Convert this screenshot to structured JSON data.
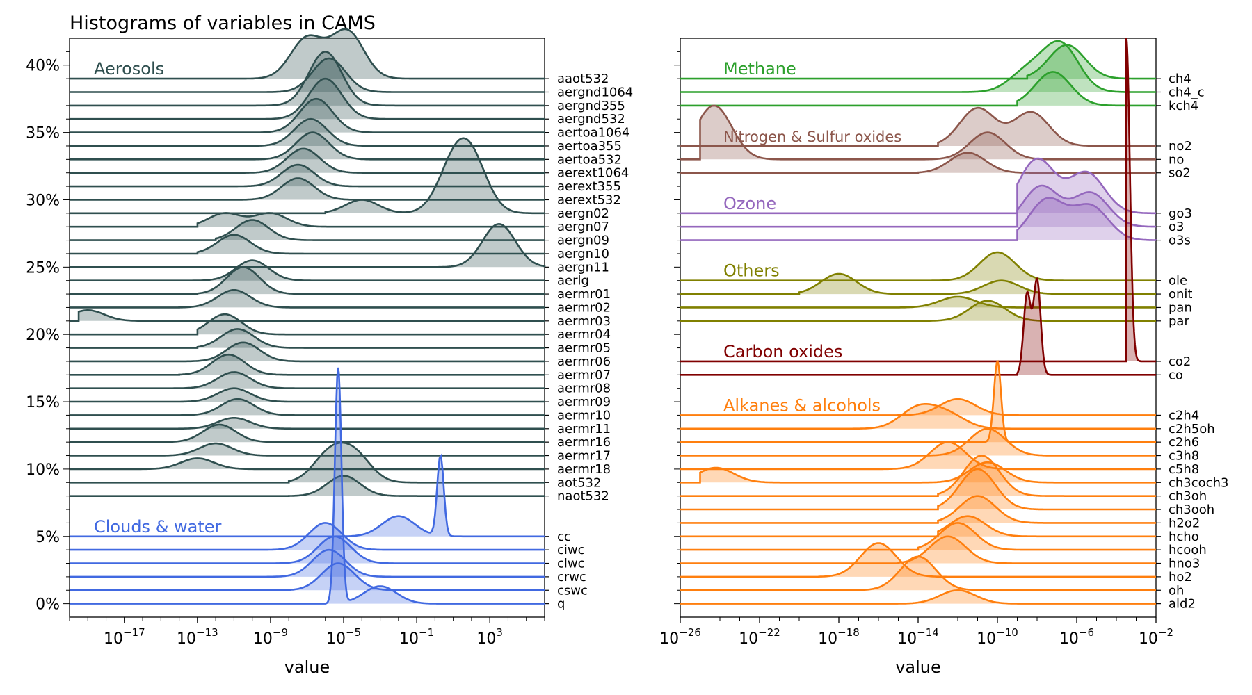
{
  "chart_data": [
    {
      "type": "area",
      "panel": "left",
      "title": "Histograms of variables in CAMS",
      "xlabel": "value",
      "ylabel": "",
      "x_scale": "log",
      "xlim": [
        1e-20,
        1000000.0
      ],
      "ylim": [
        -1,
        42
      ],
      "x_tick_labels": [
        "10^-17",
        "10^-13",
        "10^-9",
        "10^-5",
        "10^-1",
        "10^3"
      ],
      "y_tick_labels": [
        "0%",
        "5%",
        "10%",
        "15%",
        "20%",
        "25%",
        "30%",
        "35%",
        "40%"
      ],
      "grid": false,
      "groups": [
        {
          "name": "Aerosols",
          "color": "#2F4F4F",
          "series": [
            {
              "name": "aaot532",
              "baseline": 39,
              "peaks": [
                [
                  -7,
                  3
                ],
                [
                  -4.8,
                  3.5
                ]
              ],
              "start": -11
            },
            {
              "name": "aergnd1064",
              "baseline": 38,
              "peaks": [
                [
                  -5.8,
                  2.5
                ]
              ],
              "start": -12
            },
            {
              "name": "aergnd355",
              "baseline": 37,
              "peaks": [
                [
                  -6,
                  4
                ]
              ],
              "start": -11
            },
            {
              "name": "aergnd532",
              "baseline": 36,
              "peaks": [
                [
                  -6,
                  3
                ]
              ],
              "start": -11
            },
            {
              "name": "aertoa1064",
              "baseline": 35,
              "peaks": [
                [
                  -6.5,
                  2.5
                ]
              ],
              "start": -11
            },
            {
              "name": "aertoa355",
              "baseline": 34,
              "peaks": [
                [
                  -6.8,
                  2
                ]
              ],
              "start": -12
            },
            {
              "name": "aertoa532",
              "baseline": 33,
              "peaks": [
                [
                  -6.7,
                  2
                ]
              ],
              "start": -12
            },
            {
              "name": "aerext1064",
              "baseline": 32,
              "peaks": [
                [
                  -7.2,
                  1.8
                ]
              ],
              "start": -12
            },
            {
              "name": "aerext355",
              "baseline": 31,
              "peaks": [
                [
                  -7.5,
                  1.6
                ]
              ],
              "start": -12
            },
            {
              "name": "aerext532",
              "baseline": 30,
              "peaks": [
                [
                  -7.5,
                  1.6
                ]
              ],
              "start": -12
            },
            {
              "name": "aergn02",
              "baseline": 29,
              "peaks": [
                [
                  -4,
                  1
                ],
                [
                  1,
                  3
                ],
                [
                  2,
                  3.5
                ]
              ],
              "start": -6
            },
            {
              "name": "aergn07",
              "baseline": 28,
              "peaks": [
                [
                  -11.5,
                  1
                ],
                [
                  -9,
                  1
                ]
              ],
              "start": -13
            },
            {
              "name": "aergn09",
              "baseline": 27,
              "peaks": [
                [
                  -10,
                  1.5
                ]
              ],
              "start": -12
            },
            {
              "name": "aergn10",
              "baseline": 26,
              "peaks": [
                [
                  -11,
                  1.4
                ]
              ],
              "start": -13
            },
            {
              "name": "aergn11",
              "baseline": 25,
              "peaks": [
                [
                  3.5,
                  3.2
                ]
              ],
              "start": -1
            },
            {
              "name": "aerlg",
              "baseline": 24,
              "peaks": [
                [
                  -10,
                  1.5
                ]
              ],
              "start": -15
            },
            {
              "name": "aermr01",
              "baseline": 23,
              "peaks": [
                [
                  -10.5,
                  2
                ]
              ],
              "start": -13
            },
            {
              "name": "aermr02",
              "baseline": 22,
              "peaks": [
                [
                  -11,
                  1.3
                ]
              ],
              "start": -14
            },
            {
              "name": "aermr03",
              "baseline": 21,
              "peaks": [
                [
                  -19,
                  0.8
                ]
              ],
              "start": -19.5
            },
            {
              "name": "aermr04",
              "baseline": 20,
              "peaks": [
                [
                  -11.5,
                  1.5
                ]
              ],
              "start": -13
            },
            {
              "name": "aermr05",
              "baseline": 19,
              "peaks": [
                [
                  -10.8,
                  1.4
                ]
              ],
              "start": -13
            },
            {
              "name": "aermr06",
              "baseline": 18,
              "peaks": [
                [
                  -10.5,
                  1.4
                ]
              ],
              "start": -16
            },
            {
              "name": "aermr07",
              "baseline": 17,
              "peaks": [
                [
                  -11.3,
                  1.5
                ]
              ],
              "start": -14
            },
            {
              "name": "aermr08",
              "baseline": 16,
              "peaks": [
                [
                  -11,
                  1.2
                ]
              ],
              "start": -15
            },
            {
              "name": "aermr09",
              "baseline": 15,
              "peaks": [
                [
                  -11,
                  1
                ]
              ],
              "start": -15
            },
            {
              "name": "aermr10",
              "baseline": 14,
              "peaks": [
                [
                  -10.8,
                  1.2
                ]
              ],
              "start": -15
            },
            {
              "name": "aermr11",
              "baseline": 13,
              "peaks": [
                [
                  -11,
                  0.8
                ]
              ],
              "start": -14
            },
            {
              "name": "aermr16",
              "baseline": 12,
              "peaks": [
                [
                  -11.8,
                  1.3
                ]
              ],
              "start": -16
            },
            {
              "name": "aermr17",
              "baseline": 11,
              "peaks": [
                [
                  -12,
                  0.9
                ]
              ],
              "start": -17
            },
            {
              "name": "aermr18",
              "baseline": 10,
              "peaks": [
                [
                  -13,
                  0.8
                ]
              ],
              "start": -20
            },
            {
              "name": "aot532",
              "baseline": 9,
              "peaks": [
                [
                  -5.8,
                  2
                ],
                [
                  -4.4,
                  2
                ]
              ],
              "start": -8
            },
            {
              "name": "naot532",
              "baseline": 8,
              "peaks": [
                [
                  -5,
                  1.5
                ]
              ],
              "start": -8
            }
          ]
        },
        {
          "name": "Clouds & water",
          "color": "#4169E1",
          "series": [
            {
              "name": "cc",
              "baseline": 5,
              "peaks": [
                [
                  -2,
                  1.5
                ],
                [
                  0.3,
                  6
                ]
              ],
              "start": -16
            },
            {
              "name": "ciwc",
              "baseline": 4,
              "peaks": [
                [
                  -6,
                  2
                ]
              ],
              "start": -12
            },
            {
              "name": "clwc",
              "baseline": 3,
              "peaks": [
                [
                  -5.5,
                  2
                ]
              ],
              "start": -12
            },
            {
              "name": "crwc",
              "baseline": 2,
              "peaks": [
                [
                  -5.8,
                  2
                ]
              ],
              "start": -12
            },
            {
              "name": "cswc",
              "baseline": 1,
              "peaks": [
                [
                  -5.3,
                  2
                ]
              ],
              "start": -12
            },
            {
              "name": "q",
              "baseline": 0,
              "peaks": [
                [
                  -5.3,
                  17.5
                ],
                [
                  -3,
                  1.3
                ]
              ],
              "start": -6
            }
          ]
        }
      ]
    },
    {
      "type": "area",
      "panel": "right",
      "title": "",
      "xlabel": "value",
      "ylabel": "",
      "x_scale": "log",
      "xlim": [
        1e-26,
        0.01
      ],
      "ylim": [
        -1,
        42
      ],
      "x_tick_labels": [
        "10^-26",
        "10^-22",
        "10^-18",
        "10^-14",
        "10^-10",
        "10^-6",
        "10^-2"
      ],
      "grid": false,
      "groups": [
        {
          "name": "Methane",
          "color": "#2CA02C",
          "series": [
            {
              "name": "ch4",
              "baseline": 39,
              "peaks": [
                [
                  -6.5,
                  2.5
                ]
              ],
              "start": -8.5
            },
            {
              "name": "ch4_c",
              "baseline": 38,
              "peaks": [
                [
                  -8.5,
                  1.5
                ],
                [
                  -6.8,
                  3.5
                ]
              ],
              "start": -12
            },
            {
              "name": "kch4",
              "baseline": 37,
              "peaks": [
                [
                  -7.2,
                  2.5
                ]
              ],
              "start": -9
            }
          ]
        },
        {
          "name": "Nitrogen & Sulfur oxides",
          "color": "#8C564B",
          "series": [
            {
              "name": "no2",
              "baseline": 34,
              "peaks": [
                [
                  -11,
                  2.8
                ],
                [
                  -8.3,
                  2.5
                ]
              ],
              "start": -13
            },
            {
              "name": "no",
              "baseline": 33,
              "peaks": [
                [
                  -24.3,
                  4
                ],
                [
                  -10.5,
                  2
                ]
              ],
              "start": -25
            },
            {
              "name": "so2",
              "baseline": 32,
              "peaks": [
                [
                  -11.5,
                  1.5
                ]
              ],
              "start": -14
            }
          ]
        },
        {
          "name": "Ozone",
          "color": "#9467BD",
          "series": [
            {
              "name": "go3",
              "baseline": 29,
              "peaks": [
                [
                  -8,
                  4
                ],
                [
                  -5.5,
                  3
                ]
              ],
              "start": -9
            },
            {
              "name": "o3",
              "baseline": 28,
              "peaks": [
                [
                  -7.8,
                  3
                ],
                [
                  -5.3,
                  2.5
                ]
              ],
              "start": -9
            },
            {
              "name": "o3s",
              "baseline": 27,
              "peaks": [
                [
                  -7.5,
                  3
                ],
                [
                  -5.3,
                  2.5
                ]
              ],
              "start": -9
            }
          ]
        },
        {
          "name": "Others",
          "color": "#808000",
          "series": [
            {
              "name": "ole",
              "baseline": 24,
              "peaks": [
                [
                  -10,
                  2.1
                ]
              ],
              "start": -20
            },
            {
              "name": "onit",
              "baseline": 23,
              "peaks": [
                [
                  -18,
                  1.5
                ],
                [
                  -9.8,
                  1
                ]
              ],
              "start": -20
            },
            {
              "name": "pan",
              "baseline": 22,
              "peaks": [
                [
                  -12,
                  0.8
                ]
              ],
              "start": -20
            },
            {
              "name": "par",
              "baseline": 21,
              "peaks": [
                [
                  -10.5,
                  1.5
                ]
              ],
              "start": -24
            }
          ]
        },
        {
          "name": "Carbon oxides",
          "color": "#800000",
          "series": [
            {
              "name": "co2",
              "baseline": 18,
              "peaks": [
                [
                  -3.5,
                  24
                ]
              ],
              "start": -3.5
            },
            {
              "name": "co",
              "baseline": 17,
              "peaks": [
                [
                  -8.5,
                  6
                ],
                [
                  -8,
                  7
                ]
              ],
              "start": -9
            }
          ]
        },
        {
          "name": "Alkanes & alcohols",
          "color": "#FF7F0E",
          "series": [
            {
              "name": "c2h4",
              "baseline": 14,
              "peaks": [
                [
                  -12,
                  1.2
                ]
              ],
              "start": -18
            },
            {
              "name": "c2h5oh",
              "baseline": 13,
              "peaks": [
                [
                  -14,
                  1.5
                ],
                [
                  -12.5,
                  1
                ]
              ],
              "start": -18
            },
            {
              "name": "c2h6",
              "baseline": 12,
              "peaks": [
                [
                  -10,
                  6
                ]
              ],
              "start": -14
            },
            {
              "name": "c3h8",
              "baseline": 11,
              "peaks": [
                [
                  -10.5,
                  2
                ]
              ],
              "start": -14
            },
            {
              "name": "c5h8",
              "baseline": 10,
              "peaks": [
                [
                  -12.5,
                  2
                ]
              ],
              "start": -16
            },
            {
              "name": "ch3coch3",
              "baseline": 9,
              "peaks": [
                [
                  -24.2,
                  1.1
                ],
                [
                  -10.5,
                  1.5
                ]
              ],
              "start": -25
            },
            {
              "name": "ch3oh",
              "baseline": 8,
              "peaks": [
                [
                  -10.8,
                  3
                ]
              ],
              "start": -13
            },
            {
              "name": "ch3ooh",
              "baseline": 7,
              "peaks": [
                [
                  -11,
                  3
                ]
              ],
              "start": -13
            },
            {
              "name": "h2o2",
              "baseline": 6,
              "peaks": [
                [
                  -11,
                  2
                ]
              ],
              "start": -13
            },
            {
              "name": "hcho",
              "baseline": 5,
              "peaks": [
                [
                  -11.5,
                  1.5
                ]
              ],
              "start": -13
            },
            {
              "name": "hcooh",
              "baseline": 4,
              "peaks": [
                [
                  -12,
                  2
                ]
              ],
              "start": -14
            },
            {
              "name": "hno3",
              "baseline": 3,
              "peaks": [
                [
                  -12.5,
                  2
                ]
              ],
              "start": -15
            },
            {
              "name": "ho2",
              "baseline": 2,
              "peaks": [
                [
                  -16,
                  2.5
                ]
              ],
              "start": -19
            },
            {
              "name": "oh",
              "baseline": 1,
              "peaks": [
                [
                  -14,
                  2.5
                ]
              ],
              "start": -19
            },
            {
              "name": "ald2",
              "baseline": 0,
              "peaks": [
                [
                  -12,
                  1
                ]
              ],
              "start": -17
            }
          ]
        }
      ]
    }
  ]
}
